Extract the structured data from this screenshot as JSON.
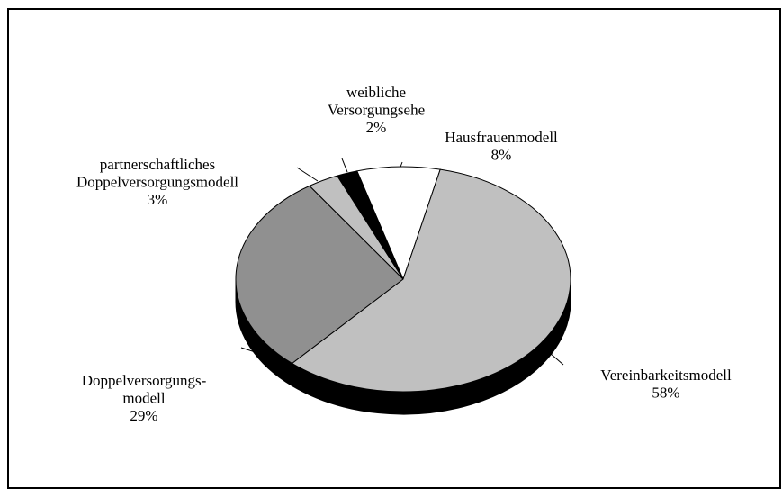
{
  "chart_data": {
    "type": "pie",
    "categories": [
      "Hausfrauenmodell",
      "Vereinbarkeitsmodell",
      "Doppelversorgungs-\nmodell",
      "partnerschaftliches\nDoppelversorgungsmodell",
      "weibliche\nVersorgungsehe"
    ],
    "values": [
      8,
      58,
      29,
      3,
      2
    ],
    "value_labels": [
      "8%",
      "58%",
      "29%",
      "3%",
      "2%"
    ],
    "colors": [
      "#ffffff",
      "#c0c0c0",
      "#909090",
      "#c0c0c0",
      "#000000"
    ]
  }
}
